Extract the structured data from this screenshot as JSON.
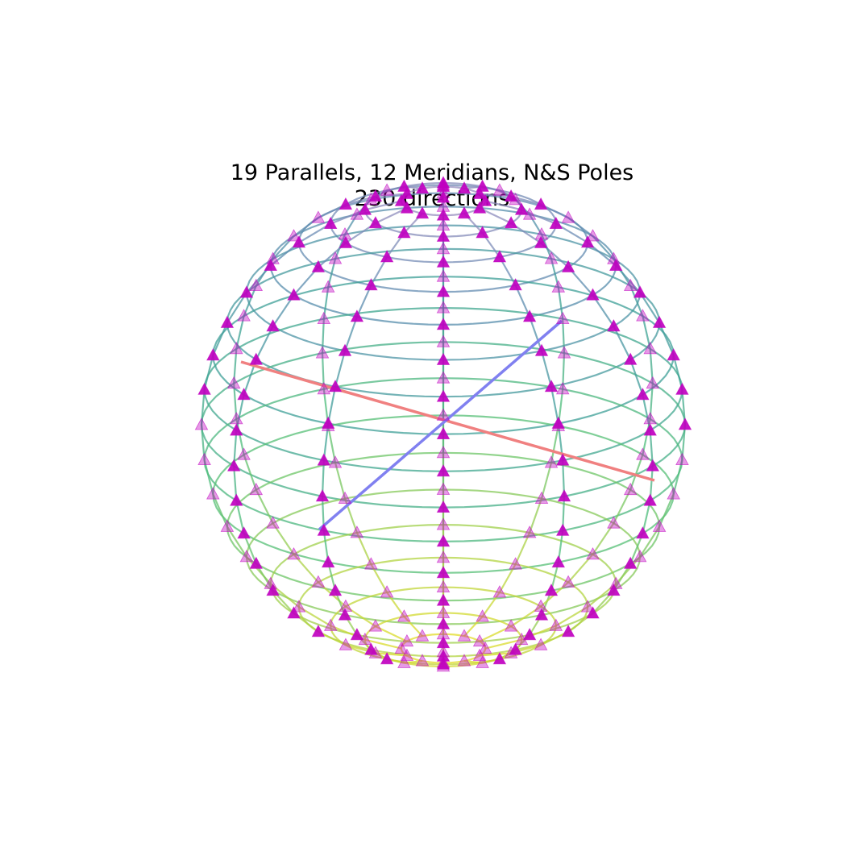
{
  "title": {
    "line1": "19 Parallels, 12 Meridians, N&S Poles",
    "line2": "230 directions"
  },
  "sphere": {
    "parallels": 19,
    "meridians": 12,
    "poles": [
      "N",
      "S"
    ],
    "directions": 230,
    "elevation_deg": 20,
    "azimuth_deg": 0
  },
  "colors": {
    "marker": "#c000c0",
    "axis_red": "#f08080",
    "axis_blue": "#8080f0"
  },
  "icons": {
    "marker": "triangle-marker"
  }
}
